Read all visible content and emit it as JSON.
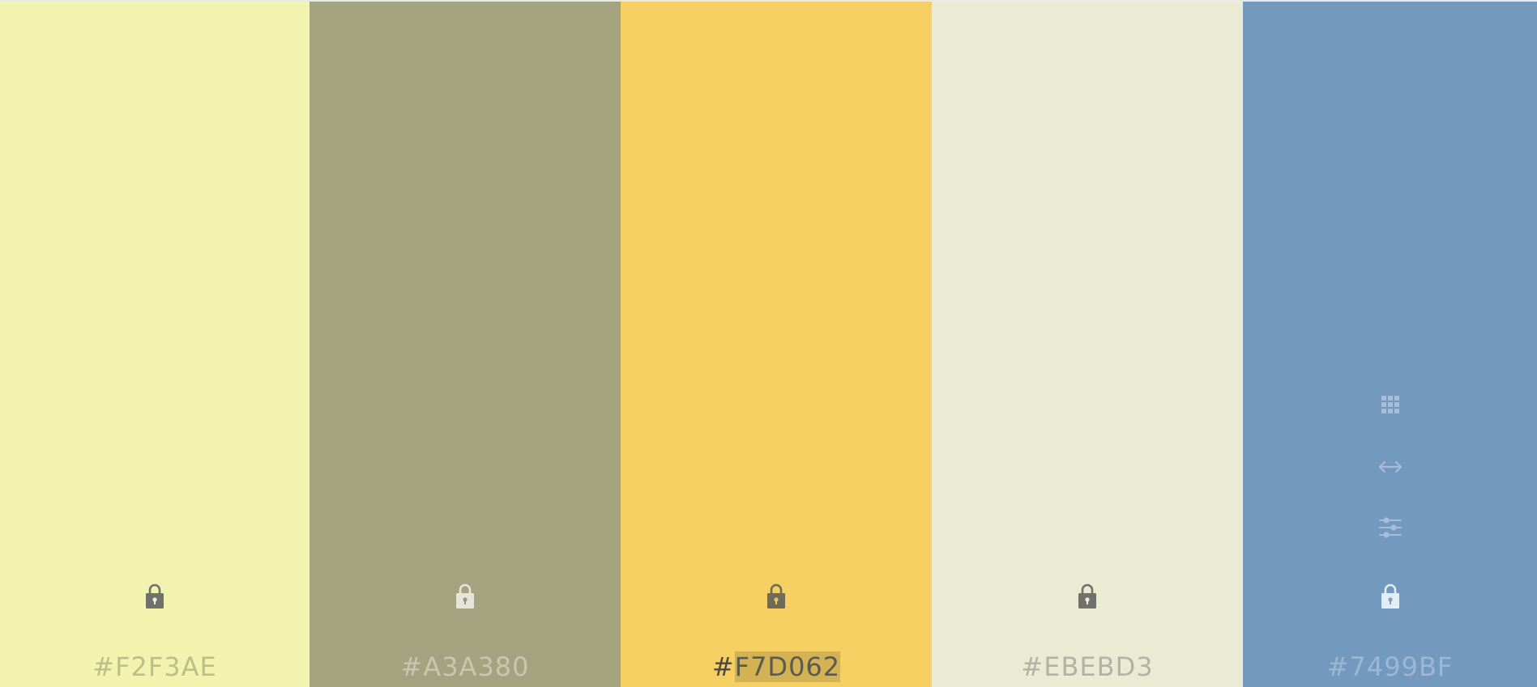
{
  "palette": {
    "swatches": [
      {
        "hex": "#F2F3AE",
        "color": "#F2F3AE",
        "hex_text_color": "#bdbf86",
        "lock_color": "#6f716a"
      },
      {
        "hex": "#A3A380",
        "color": "#A3A380",
        "hex_text_color": "#c7c7ad",
        "lock_color": "#e5e5da"
      },
      {
        "hex": "#F7D062",
        "color": "#F5CF62",
        "hex_text_color": "#4d4a3c",
        "lock_color": "#6f6a5a",
        "selected_part": "F7D062",
        "prefix": "#"
      },
      {
        "hex": "#EBEBD3",
        "color": "#EBEBD3",
        "hex_text_color": "#b3b3a4",
        "lock_color": "#6f716a"
      },
      {
        "hex": "#7499BF",
        "color": "#7499BF",
        "hex_text_color": "#9cb6d4",
        "lock_color": "#e4ecf6"
      }
    ],
    "hover_tools": {
      "icons": [
        "grid-icon",
        "drag-arrows-icon",
        "adjust-sliders-icon"
      ],
      "icon_color": "#a6bcd8"
    }
  }
}
